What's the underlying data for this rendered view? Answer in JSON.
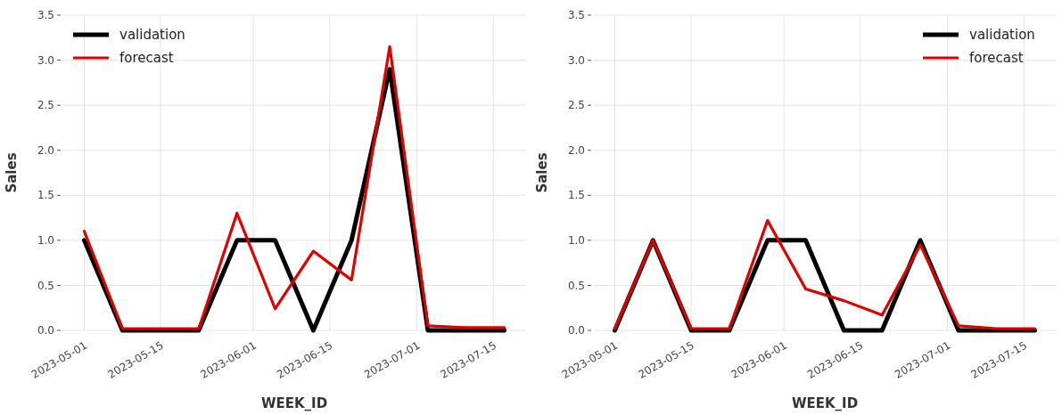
{
  "chart_data": [
    {
      "type": "line",
      "xlabel": "WEEK_ID",
      "ylabel": "Sales",
      "x": [
        "2023-05-01",
        "2023-05-08",
        "2023-05-15",
        "2023-05-22",
        "2023-05-29",
        "2023-06-05",
        "2023-06-12",
        "2023-06-19",
        "2023-06-26",
        "2023-07-03",
        "2023-07-10",
        "2023-07-17"
      ],
      "xlim": [
        "2023-04-27",
        "2023-07-21"
      ],
      "xticks": [
        "2023-05-01",
        "2023-05-15",
        "2023-06-01",
        "2023-06-15",
        "2023-07-01",
        "2023-07-15"
      ],
      "ylim": [
        0,
        3.5
      ],
      "yticks": [
        {
          "value": 0,
          "label": "0.0"
        },
        0.5,
        {
          "value": 1,
          "label": "1.0"
        },
        1.5,
        {
          "value": 2,
          "label": "2.0"
        },
        2.5,
        {
          "value": 3,
          "label": "3.0"
        },
        3.5
      ],
      "grid": true,
      "legend": "top left",
      "series": [
        {
          "name": "validation",
          "color": "#000000",
          "values": [
            1,
            0,
            0,
            0,
            1,
            1,
            0,
            1,
            2.9,
            0,
            0,
            0
          ]
        },
        {
          "name": "forecast",
          "color": "#e00000",
          "values": [
            1.1,
            0.02,
            0.02,
            0.02,
            1.3,
            0.24,
            0.88,
            0.56,
            3.15,
            0.05,
            0.03,
            0.03
          ]
        }
      ]
    },
    {
      "type": "line",
      "xlabel": "WEEK_ID",
      "ylabel": "Sales",
      "x": [
        "2023-05-01",
        "2023-05-08",
        "2023-05-15",
        "2023-05-22",
        "2023-05-29",
        "2023-06-05",
        "2023-06-12",
        "2023-06-19",
        "2023-06-26",
        "2023-07-03",
        "2023-07-10",
        "2023-07-17"
      ],
      "xlim": [
        "2023-04-27",
        "2023-07-21"
      ],
      "xticks": [
        "2023-05-01",
        "2023-05-15",
        "2023-06-01",
        "2023-06-15",
        "2023-07-01",
        "2023-07-15"
      ],
      "ylim": [
        0,
        3.5
      ],
      "yticks": [
        {
          "value": 0,
          "label": "0.0"
        },
        0.5,
        {
          "value": 1,
          "label": "1.0"
        },
        1.5,
        {
          "value": 2,
          "label": "2.0"
        },
        2.5,
        {
          "value": 3,
          "label": "3.0"
        },
        3.5
      ],
      "grid": true,
      "legend": "top right",
      "series": [
        {
          "name": "validation",
          "color": "#000000",
          "values": [
            0,
            1,
            0,
            0,
            1,
            1,
            0,
            0,
            1,
            0,
            0,
            0
          ]
        },
        {
          "name": "forecast",
          "color": "#e00000",
          "values": [
            0.02,
            1.0,
            0.02,
            0.02,
            1.22,
            0.46,
            0.33,
            0.17,
            0.95,
            0.05,
            0.02,
            0.02
          ]
        }
      ]
    }
  ]
}
